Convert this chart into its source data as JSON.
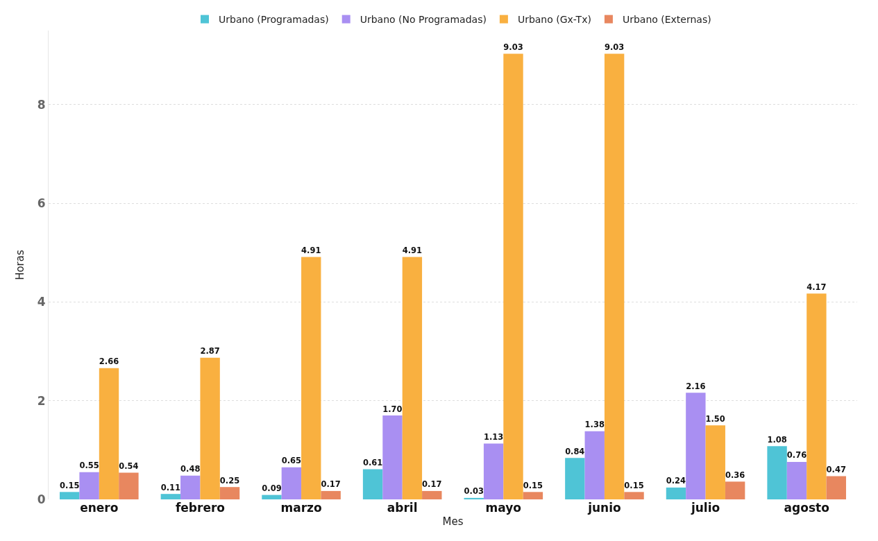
{
  "chart_data": {
    "type": "bar",
    "xlabel": "Mes",
    "ylabel": "Horas",
    "categories": [
      "enero",
      "febrero",
      "marzo",
      "abril",
      "mayo",
      "junio",
      "julio",
      "agosto"
    ],
    "series": [
      {
        "name": "Urbano (Programadas)",
        "color": "#4fc4d6",
        "values": [
          0.15,
          0.11,
          0.09,
          0.61,
          0.03,
          0.84,
          0.24,
          1.08
        ],
        "value_labels": [
          "0.15",
          "0.11",
          "0.09",
          "0.61",
          "0.03",
          "0.84",
          "0.24",
          "1.08"
        ]
      },
      {
        "name": "Urbano (No Programadas)",
        "color": "#a98ff2",
        "values": [
          0.55,
          0.48,
          0.65,
          1.7,
          1.13,
          1.38,
          2.16,
          0.76
        ],
        "value_labels": [
          "0.55",
          "0.48",
          "0.65",
          "1.70",
          "1.13",
          "1.38",
          "2.16",
          "0.76"
        ]
      },
      {
        "name": "Urbano (Gx-Tx)",
        "color": "#f9b040",
        "values": [
          2.66,
          2.87,
          4.91,
          4.91,
          9.03,
          9.03,
          1.5,
          4.17
        ],
        "value_labels": [
          "2.66",
          "2.87",
          "4.91",
          "4.91",
          "9.03",
          "9.03",
          "1.50",
          "4.17"
        ]
      },
      {
        "name": "Urbano (Externas)",
        "color": "#e8875f",
        "values": [
          0.54,
          0.25,
          0.17,
          0.17,
          0.15,
          0.15,
          0.36,
          0.47
        ],
        "value_labels": [
          "0.54",
          "0.25",
          "0.17",
          "0.17",
          "0.15",
          "0.15",
          "0.36",
          "0.47"
        ]
      }
    ],
    "ylim": [
      0,
      9.5
    ],
    "yticks": [
      0,
      2,
      4,
      6,
      8
    ],
    "grid": "y",
    "legend": "top"
  }
}
